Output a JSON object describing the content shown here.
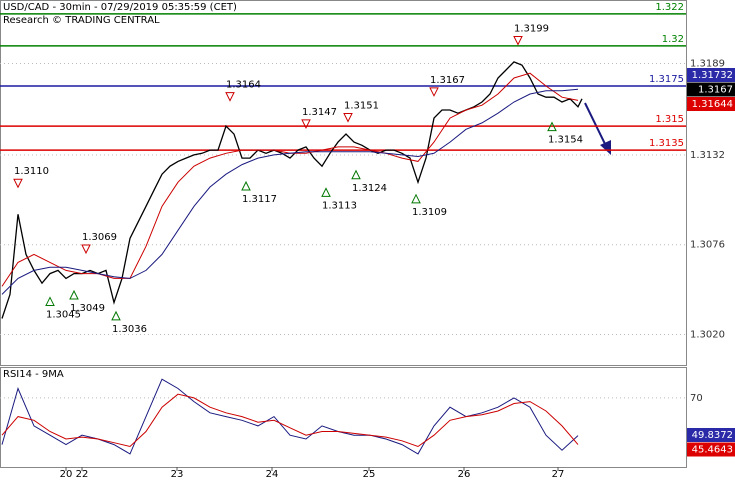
{
  "chart_data": [
    {
      "type": "line",
      "title": "USD/CAD - 30min - 07/29/2019 05:35:59 (CET)",
      "subtitle": "Research © TRADING CENTRAL",
      "xlim": [
        0,
        342
      ],
      "ylim": [
        1.3001,
        1.3228
      ],
      "xticks": [
        {
          "value": 32,
          "label": "20"
        },
        {
          "value": 40,
          "label": "22"
        },
        {
          "value": 87.5,
          "label": "23"
        },
        {
          "value": 135,
          "label": "24"
        },
        {
          "value": 183.5,
          "label": "25"
        },
        {
          "value": 231,
          "label": "26"
        },
        {
          "value": 278,
          "label": "27"
        }
      ],
      "yticks": [
        1.3189,
        1.3132,
        1.3076,
        {
          "value": 1.302,
          "label": "1.3020"
        }
      ],
      "grid": true,
      "series": [
        {
          "color": "#000000",
          "x": [
            0,
            4,
            8,
            12,
            16,
            20,
            24,
            28,
            32,
            36,
            40,
            44,
            48,
            52,
            56,
            60,
            64,
            68,
            72,
            76,
            80,
            84,
            88,
            92,
            96,
            100,
            104,
            108,
            112,
            116,
            120,
            124,
            128,
            132,
            136,
            140,
            144,
            148,
            152,
            156,
            160,
            164,
            168,
            172,
            176,
            180,
            184,
            188,
            192,
            196,
            200,
            204,
            208,
            212,
            216,
            220,
            224,
            228,
            232,
            236,
            240,
            244,
            248,
            252,
            256,
            260,
            264,
            268,
            272,
            276,
            280,
            284,
            288,
            290
          ],
          "values": [
            1.303,
            1.3045,
            1.3095,
            1.307,
            1.306,
            1.3052,
            1.3058,
            1.306,
            1.3055,
            1.3058,
            1.3058,
            1.306,
            1.3058,
            1.306,
            1.304,
            1.3055,
            1.308,
            1.309,
            1.31,
            1.311,
            1.312,
            1.3125,
            1.3128,
            1.313,
            1.3132,
            1.3133,
            1.3135,
            1.3135,
            1.315,
            1.3145,
            1.313,
            1.313,
            1.3135,
            1.3133,
            1.3135,
            1.3133,
            1.313,
            1.3135,
            1.3137,
            1.313,
            1.3125,
            1.3133,
            1.314,
            1.3145,
            1.314,
            1.3138,
            1.3135,
            1.3133,
            1.3135,
            1.3135,
            1.3133,
            1.313,
            1.3115,
            1.313,
            1.3155,
            1.316,
            1.316,
            1.3158,
            1.316,
            1.3162,
            1.3165,
            1.317,
            1.318,
            1.3185,
            1.319,
            1.3188,
            1.318,
            1.317,
            1.3168,
            1.3168,
            1.3165,
            1.3167,
            1.3162,
            1.3167
          ]
        },
        {
          "color": "#cc0000",
          "x": [
            0,
            8,
            16,
            24,
            32,
            40,
            48,
            56,
            64,
            72,
            80,
            88,
            96,
            104,
            112,
            120,
            128,
            136,
            144,
            152,
            160,
            168,
            176,
            184,
            192,
            200,
            208,
            216,
            224,
            232,
            240,
            248,
            256,
            264,
            272,
            280,
            288
          ],
          "values": [
            1.305,
            1.3065,
            1.307,
            1.3065,
            1.306,
            1.3058,
            1.3058,
            1.3055,
            1.3055,
            1.3075,
            1.31,
            1.3115,
            1.3125,
            1.313,
            1.3133,
            1.3135,
            1.3135,
            1.3135,
            1.3133,
            1.3133,
            1.3135,
            1.3137,
            1.3137,
            1.3135,
            1.3133,
            1.313,
            1.3128,
            1.314,
            1.3155,
            1.316,
            1.3163,
            1.317,
            1.318,
            1.3183,
            1.3175,
            1.3168,
            1.3166
          ]
        },
        {
          "color": "#1a1a80",
          "x": [
            0,
            8,
            16,
            24,
            32,
            40,
            48,
            56,
            64,
            72,
            80,
            88,
            96,
            104,
            112,
            120,
            128,
            136,
            144,
            152,
            160,
            168,
            176,
            184,
            192,
            200,
            208,
            216,
            224,
            232,
            240,
            248,
            256,
            264,
            272,
            280,
            288
          ],
          "values": [
            1.3045,
            1.3055,
            1.306,
            1.3062,
            1.3062,
            1.306,
            1.3058,
            1.3056,
            1.3055,
            1.306,
            1.307,
            1.3085,
            1.31,
            1.3112,
            1.312,
            1.3126,
            1.313,
            1.3132,
            1.3133,
            1.3134,
            1.3134,
            1.3134,
            1.3134,
            1.3134,
            1.3133,
            1.3132,
            1.3131,
            1.3133,
            1.314,
            1.3148,
            1.3152,
            1.3158,
            1.3165,
            1.317,
            1.3172,
            1.3172,
            1.3173
          ]
        }
      ],
      "levels": [
        {
          "value": 1.322,
          "color": "#008000"
        },
        {
          "value": 1.32,
          "color": "#008000"
        },
        {
          "value": 1.3175,
          "color": "#1a1aa0"
        },
        {
          "value": 1.315,
          "color": "#dd0000"
        },
        {
          "value": 1.3135,
          "color": "#dd0000"
        }
      ],
      "pivots": [
        {
          "kind": "high",
          "x": 8,
          "value": 1.311,
          "label": "1.3110"
        },
        {
          "kind": "high",
          "x": 42,
          "value": 1.3069,
          "label": "1.3069"
        },
        {
          "kind": "low",
          "x": 24,
          "value": 1.3045,
          "label": "1.3045"
        },
        {
          "kind": "low",
          "x": 36,
          "value": 1.3049,
          "label": "1.3049"
        },
        {
          "kind": "low",
          "x": 57,
          "value": 1.3036,
          "label": "1.3036"
        },
        {
          "kind": "high",
          "x": 114,
          "value": 1.3164,
          "label": "1.3164"
        },
        {
          "kind": "low",
          "x": 122,
          "value": 1.3117,
          "label": "1.3117"
        },
        {
          "kind": "high",
          "x": 152,
          "value": 1.3147,
          "label": "1.3147"
        },
        {
          "kind": "high",
          "x": 173,
          "value": 1.3151,
          "label": "1.3151"
        },
        {
          "kind": "low",
          "x": 162,
          "value": 1.3113,
          "label": "1.3113"
        },
        {
          "kind": "low",
          "x": 177,
          "value": 1.3124,
          "label": "1.3124"
        },
        {
          "kind": "low",
          "x": 207,
          "value": 1.3109,
          "label": "1.3109"
        },
        {
          "kind": "high",
          "x": 216,
          "value": 1.3167,
          "label": "1.3167"
        },
        {
          "kind": "high",
          "x": 258,
          "value": 1.3199,
          "label": "1.3199"
        },
        {
          "kind": "low",
          "x": 275,
          "value": 1.3154,
          "label": "1.3154"
        }
      ],
      "price_tags": [
        {
          "value": 1.31732,
          "color": "#2a2aa8"
        },
        {
          "value": 1.3167,
          "color": "#000000"
        },
        {
          "value": 1.31644,
          "color": "#dd0000"
        }
      ]
    },
    {
      "type": "line",
      "title": "RSI14 - 9MA",
      "xlim": [
        0,
        342
      ],
      "ylim": [
        33,
        86
      ],
      "yticks": [
        70
      ],
      "grid": true,
      "series": [
        {
          "color": "#1a1a80",
          "x": [
            0,
            8,
            16,
            24,
            32,
            40,
            48,
            56,
            64,
            72,
            80,
            88,
            96,
            104,
            112,
            120,
            128,
            136,
            144,
            152,
            160,
            168,
            176,
            184,
            192,
            200,
            208,
            216,
            224,
            232,
            240,
            248,
            256,
            264,
            272,
            280,
            288
          ],
          "values": [
            45,
            75,
            55,
            50,
            45,
            50,
            48,
            45,
            40,
            60,
            80,
            75,
            68,
            62,
            60,
            58,
            55,
            60,
            50,
            48,
            55,
            52,
            50,
            50,
            48,
            45,
            40,
            55,
            65,
            60,
            62,
            65,
            70,
            65,
            50,
            42,
            49.8
          ]
        },
        {
          "color": "#cc0000",
          "x": [
            0,
            8,
            16,
            24,
            32,
            40,
            48,
            56,
            64,
            72,
            80,
            88,
            96,
            104,
            112,
            120,
            128,
            136,
            144,
            152,
            160,
            168,
            176,
            184,
            192,
            200,
            208,
            216,
            224,
            232,
            240,
            248,
            256,
            264,
            272,
            280,
            288
          ],
          "values": [
            50,
            60,
            58,
            52,
            48,
            49,
            48,
            46,
            44,
            52,
            65,
            72,
            70,
            65,
            62,
            60,
            57,
            58,
            54,
            50,
            52,
            52,
            51,
            50,
            49,
            47,
            44,
            50,
            58,
            60,
            61,
            63,
            67,
            68,
            63,
            55,
            45
          ]
        }
      ],
      "price_tags": [
        {
          "value": 49.8372,
          "color": "#2a2aa8"
        },
        {
          "value": 45.4643,
          "color": "#dd0000"
        }
      ]
    }
  ]
}
